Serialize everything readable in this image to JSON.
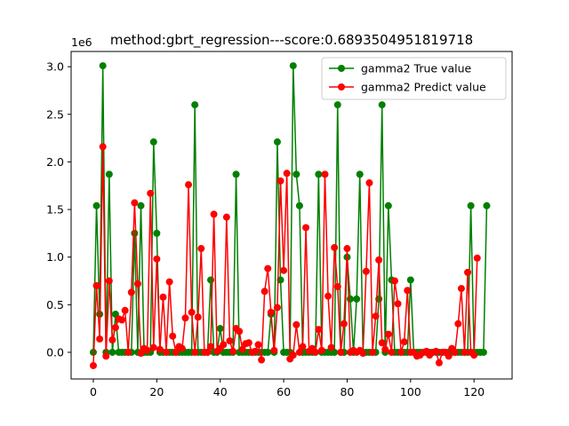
{
  "chart_data": {
    "type": "line",
    "title": "method:gbrt_regression---score:0.6893504951819718",
    "xlabel": "",
    "ylabel": "",
    "y_offset_label": "1e6",
    "xlim": [
      -7,
      132
    ],
    "ylim": [
      -280000,
      3160000
    ],
    "xticks": [
      0,
      20,
      40,
      60,
      80,
      100,
      120
    ],
    "yticks": [
      0.0,
      0.5,
      1.0,
      1.5,
      2.0,
      2.5,
      3.0
    ],
    "ytick_scale": 1000000,
    "grid": false,
    "legend_position": "top-right",
    "series": [
      {
        "name": "gamma2 True value",
        "color": "#008000",
        "values": [
          0,
          1540000,
          400000,
          3010000,
          0,
          1870000,
          0,
          400000,
          0,
          0,
          0,
          0,
          0,
          1250000,
          0,
          1540000,
          0,
          0,
          0,
          2210000,
          1250000,
          0,
          0,
          0,
          0,
          0,
          0,
          0,
          0,
          0,
          0,
          0,
          2600000,
          0,
          0,
          0,
          0,
          760000,
          0,
          0,
          250000,
          0,
          0,
          0,
          0,
          1870000,
          0,
          0,
          0,
          0,
          0,
          0,
          0,
          0,
          0,
          0,
          400000,
          0,
          2210000,
          760000,
          0,
          0,
          0,
          3010000,
          1870000,
          1540000,
          0,
          0,
          0,
          0,
          0,
          1870000,
          0,
          0,
          0,
          0,
          0,
          2600000,
          0,
          0,
          1000000,
          560000,
          0,
          560000,
          1870000,
          0,
          0,
          0,
          0,
          0,
          560000,
          2600000,
          0,
          1540000,
          760000,
          0,
          0,
          0,
          0,
          0,
          760000,
          0,
          0,
          0,
          0,
          0,
          0,
          0,
          0,
          0,
          0,
          0,
          0,
          0,
          0,
          0,
          0,
          0,
          0,
          1540000,
          0,
          0,
          0,
          0,
          1540000
        ]
      },
      {
        "name": "gamma2 Predict value",
        "color": "#ff0000",
        "values": [
          -140000,
          700000,
          140000,
          2160000,
          -40000,
          750000,
          130000,
          260000,
          350000,
          340000,
          440000,
          0,
          630000,
          1570000,
          720000,
          -10000,
          40000,
          20000,
          1670000,
          50000,
          980000,
          30000,
          580000,
          0,
          740000,
          170000,
          0,
          60000,
          40000,
          360000,
          1760000,
          420000,
          0,
          370000,
          1090000,
          0,
          0,
          60000,
          1450000,
          10000,
          40000,
          80000,
          1420000,
          120000,
          10000,
          250000,
          220000,
          30000,
          90000,
          100000,
          0,
          10000,
          80000,
          -80000,
          640000,
          880000,
          420000,
          20000,
          470000,
          1800000,
          860000,
          1880000,
          -70000,
          -30000,
          290000,
          0,
          60000,
          1310000,
          10000,
          40000,
          0,
          240000,
          20000,
          1870000,
          590000,
          50000,
          1100000,
          690000,
          0,
          300000,
          1090000,
          0,
          20000,
          0,
          20000,
          -10000,
          850000,
          1780000,
          0,
          380000,
          970000,
          100000,
          30000,
          190000,
          0,
          750000,
          510000,
          0,
          110000,
          650000,
          0,
          0,
          -40000,
          -30000,
          0,
          10000,
          -30000,
          0,
          10000,
          -110000,
          0,
          0,
          -40000,
          40000,
          0,
          300000,
          670000,
          0,
          840000,
          0,
          -30000,
          990000
        ]
      }
    ]
  }
}
